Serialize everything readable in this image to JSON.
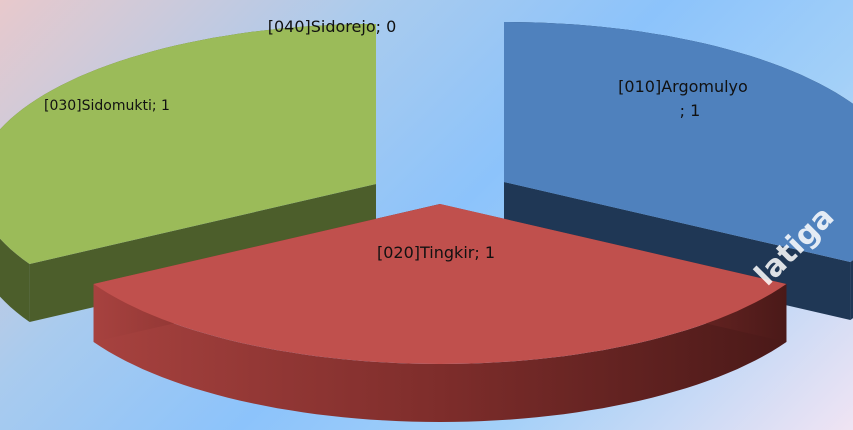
{
  "chart_data": {
    "type": "pie",
    "title": "",
    "slices": [
      {
        "label": "[010]Argomulyo",
        "value": 1,
        "color": "#4f81bd"
      },
      {
        "label": "[020]Tingkir",
        "value": 1,
        "color": "#c0504d"
      },
      {
        "label": "[030]Sidomukti",
        "value": 1,
        "color": "#9bbb59"
      },
      {
        "label": "[040]Sidorejo",
        "value": 0,
        "color": "#8064a2"
      }
    ],
    "labels_text": [
      "[010]Argomulyo",
      "; 1",
      "[020]Tingkir; 1",
      "[030]Sidomukti; 1",
      "[040]Sidorejo; 0"
    ],
    "legend": "none",
    "style": "3d-exploded"
  },
  "watermark": "latiga"
}
